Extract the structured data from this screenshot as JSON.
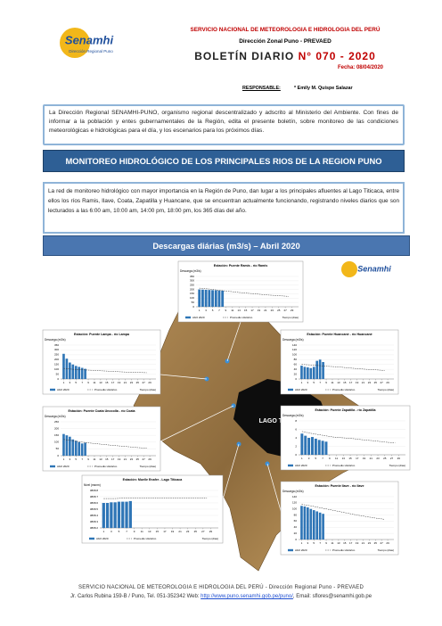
{
  "logo": {
    "name": "Senamhi",
    "sub": "Dirección Regional Puno"
  },
  "header": {
    "org": "SERVICIO NACIONAL DE METEOROLOGIA E HIDROLOGIA DEL PERÚ",
    "office": "Dirección Zonal Puno - PREVAED",
    "title": "BOLETÍN DIARIO",
    "number": "N° 070 - 2020",
    "date": "Fecha: 08/04/2020"
  },
  "responsible": {
    "label": "RESPONSABLE:",
    "name": "* Emily M. Quispe Salazar"
  },
  "intro": "La Dirección Regional SENAMHI-PUNO, organismo regional descentralizado y adscrito al Ministerio del Ambiente. Con fines de informar a la población y entes gubernamentales de la Región, edita el presente boletín, sobre monitoreo de las condiciones meteorológicas e hidrológicas para el día, y los escenarios para los próximos días.",
  "section_title": "MONITOREO HIDROLÓGICO DE LOS PRINCIPALES RIOS DE LA REGION PUNO",
  "paragraph": "La red de monitoreo hidrológico con mayor importancia en la Región de Puno, dan lugar a los principales afluentes al Lago Titicaca, entre ellos los ríos Ramis, Ilave, Coata, Zapatilla y Huancane, que se encuentran actualmente funcionando, registrando niveles diarios que son lecturados a las 6:00 am, 10:00 am, 14:00 pm, 18:00 pm, los 365 días del año.",
  "map_title": "Descargas diárias (m3/s) – Abril 2020",
  "map_label": "LAGO TITICACA",
  "map_logo": "Senamhi",
  "chart_data": [
    {
      "type": "bar",
      "title": "Estación: Puente Ramis - río Ramis",
      "y_label": "Descarga (m3/s)",
      "x_label": "Tiempo (días)",
      "xlim": [
        0,
        31
      ],
      "xticks": [
        1,
        3,
        5,
        7,
        9,
        11,
        13,
        15,
        17,
        19,
        21,
        23,
        25,
        27,
        29
      ],
      "ylim": [
        0,
        350
      ],
      "yticks": [
        0,
        50,
        100,
        150,
        200,
        250,
        300,
        350
      ],
      "series": [
        {
          "name": "Abril 2020",
          "type": "bar",
          "color": "#2e75b6",
          "x": [
            1,
            2,
            3,
            4,
            5,
            6,
            7,
            8
          ],
          "values": [
            200,
            198,
            196,
            194,
            192,
            190,
            188,
            186
          ]
        },
        {
          "name": "Promedio Histórico",
          "type": "line",
          "color": "#333333",
          "x": [
            1,
            4,
            7,
            10,
            13,
            16,
            19,
            22,
            25,
            28
          ],
          "values": [
            215,
            205,
            190,
            178,
            165,
            155,
            145,
            135,
            128,
            120
          ]
        }
      ]
    },
    {
      "type": "bar",
      "title": "Estación: Puente Lampa - río Lampa",
      "y_label": "Descarga (m3/s)",
      "x_label": "Tiempo (días)",
      "xlim": [
        0,
        31
      ],
      "xticks": [
        1,
        3,
        5,
        7,
        9,
        11,
        13,
        15,
        17,
        19,
        21,
        23,
        25,
        27,
        29
      ],
      "ylim": [
        0,
        350
      ],
      "yticks": [
        0,
        50,
        100,
        150,
        200,
        250,
        300,
        350
      ],
      "series": [
        {
          "name": "Abril 2020",
          "type": "bar",
          "color": "#2e75b6",
          "x": [
            1,
            2,
            3,
            4,
            5,
            6,
            7,
            8
          ],
          "values": [
            260,
            210,
            170,
            150,
            135,
            125,
            115,
            105
          ]
        },
        {
          "name": "Promedio Histórico",
          "type": "line",
          "color": "#333333",
          "x": [
            1,
            4,
            7,
            10,
            13,
            16,
            19,
            22,
            25,
            28
          ],
          "values": [
            110,
            100,
            95,
            90,
            85,
            80,
            75,
            70,
            68,
            65
          ]
        }
      ]
    },
    {
      "type": "bar",
      "title": "Estación: Puente Huancané - río Huancané",
      "y_label": "Descarga (m3/s)",
      "x_label": "Tiempo (días)",
      "xlim": [
        0,
        31
      ],
      "xticks": [
        1,
        3,
        5,
        7,
        9,
        11,
        13,
        15,
        17,
        19,
        21,
        23,
        25,
        27,
        29
      ],
      "ylim": [
        0,
        140
      ],
      "yticks": [
        0,
        20,
        40,
        60,
        80,
        100,
        120,
        140
      ],
      "series": [
        {
          "name": "Abril 2020",
          "type": "bar",
          "color": "#2e75b6",
          "x": [
            1,
            2,
            3,
            4,
            5,
            6,
            7,
            8
          ],
          "values": [
            55,
            50,
            48,
            45,
            50,
            75,
            80,
            70
          ]
        },
        {
          "name": "Promedio Histórico",
          "type": "line",
          "color": "#333333",
          "x": [
            1,
            4,
            7,
            10,
            13,
            16,
            19,
            22,
            25,
            28
          ],
          "values": [
            60,
            58,
            55,
            52,
            50,
            46,
            43,
            40,
            38,
            35
          ]
        }
      ]
    },
    {
      "type": "bar",
      "title": "Estación: Puente Coata Unocolla - río Coata",
      "y_label": "Descarga (m3/s)",
      "x_label": "Tiempo (días)",
      "xlim": [
        0,
        31
      ],
      "xticks": [
        1,
        3,
        5,
        7,
        9,
        11,
        13,
        15,
        17,
        19,
        21,
        23,
        25,
        27,
        29
      ],
      "ylim": [
        0,
        250
      ],
      "yticks": [
        0,
        50,
        100,
        150,
        200,
        250
      ],
      "series": [
        {
          "name": "Abril 2020",
          "type": "bar",
          "color": "#2e75b6",
          "x": [
            1,
            2,
            3,
            4,
            5,
            6,
            7,
            8
          ],
          "values": [
            160,
            150,
            140,
            120,
            110,
            100,
            90,
            95
          ]
        },
        {
          "name": "Promedio Histórico",
          "type": "line",
          "color": "#333333",
          "x": [
            1,
            4,
            7,
            10,
            13,
            16,
            19,
            22,
            25,
            28
          ],
          "values": [
            120,
            110,
            100,
            92,
            85,
            78,
            72,
            66,
            60,
            55
          ]
        }
      ]
    },
    {
      "type": "bar",
      "title": "Estación: Puente Zapatilla - río Zapatilla",
      "y_label": "Descarga (m3/s)",
      "x_label": "Tiempo (días)",
      "xlim": [
        0,
        31
      ],
      "xticks": [
        1,
        3,
        5,
        7,
        9,
        11,
        13,
        15,
        17,
        19,
        21,
        23,
        25,
        27,
        29
      ],
      "ylim": [
        0,
        8
      ],
      "yticks": [
        0,
        2,
        4,
        6,
        8
      ],
      "series": [
        {
          "name": "Abril 2020",
          "type": "bar",
          "color": "#2e75b6",
          "x": [
            1,
            2,
            3,
            4,
            5,
            6,
            7,
            8
          ],
          "values": [
            5,
            4.5,
            4,
            4.2,
            3.8,
            3.5,
            3.3,
            3.1
          ]
        },
        {
          "name": "Promedio Histórico",
          "type": "line",
          "color": "#333333",
          "x": [
            1,
            4,
            7,
            10,
            13,
            16,
            19,
            22,
            25,
            28
          ],
          "values": [
            5.5,
            5,
            4.6,
            4.2,
            4,
            3.8,
            3.5,
            3.3,
            3,
            2.8
          ]
        }
      ]
    },
    {
      "type": "bar",
      "title": "Estación: Puente Ilave - río Ilave",
      "y_label": "Descarga (m3/s)",
      "x_label": "Tiempo (días)",
      "xlim": [
        0,
        31
      ],
      "xticks": [
        1,
        3,
        5,
        7,
        9,
        11,
        13,
        15,
        17,
        19,
        21,
        23,
        25,
        27,
        29
      ],
      "ylim": [
        0,
        140
      ],
      "yticks": [
        0,
        20,
        40,
        60,
        80,
        100,
        120,
        140
      ],
      "series": [
        {
          "name": "Abril 2020",
          "type": "bar",
          "color": "#2e75b6",
          "x": [
            1,
            2,
            3,
            4,
            5,
            6,
            7,
            8
          ],
          "values": [
            110,
            108,
            105,
            100,
            96,
            92,
            88,
            84
          ]
        },
        {
          "name": "Promedio Histórico",
          "type": "line",
          "color": "#333333",
          "x": [
            1,
            4,
            7,
            10,
            13,
            16,
            19,
            22,
            25,
            28
          ],
          "values": [
            115,
            110,
            104,
            98,
            92,
            86,
            80,
            75,
            70,
            66
          ]
        }
      ]
    },
    {
      "type": "bar",
      "title": "Estación: Muelle Enafer - Lago Titicaca",
      "y_label": "Nivel (msnm)",
      "x_label": "Tiempo (días)",
      "xlim": [
        0,
        31
      ],
      "xticks": [
        1,
        3,
        5,
        7,
        9,
        11,
        13,
        15,
        17,
        19,
        21,
        23,
        25,
        27,
        29
      ],
      "ylim": [
        3808.2,
        3808.8
      ],
      "yticks": [
        3808.2,
        3808.3,
        3808.4,
        3808.5,
        3808.6,
        3808.7,
        3808.8
      ],
      "series": [
        {
          "name": "Abril 2020",
          "type": "bar",
          "color": "#2e75b6",
          "x": [
            1,
            2,
            3,
            4,
            5,
            6,
            7,
            8
          ],
          "values": [
            3808.6,
            3808.6,
            3808.61,
            3808.61,
            3808.62,
            3808.62,
            3808.62,
            3808.63
          ]
        },
        {
          "name": "Promedio Histórico",
          "type": "line",
          "color": "#333333",
          "x": [
            1,
            4,
            7,
            10,
            13,
            16,
            19,
            22,
            25,
            28
          ],
          "values": [
            3808.67,
            3808.67,
            3808.68,
            3808.68,
            3808.68,
            3808.68,
            3808.68,
            3808.68,
            3808.68,
            3808.68
          ]
        }
      ]
    }
  ],
  "footer": {
    "line1": "SERVICIO NACIONAL DE METEOROLOGIA E HIDROLOGIA DEL PERÚ - Dirección Regional Puno - PREVAED",
    "address": "Jr. Carlos Rubina 159-B / Puno, Tel. 051-352342 Web:",
    "link": "http://www.puno.senamhi.gob.pe/puno/",
    "email": ", Email: sflores@senamhi.gob.pe"
  }
}
